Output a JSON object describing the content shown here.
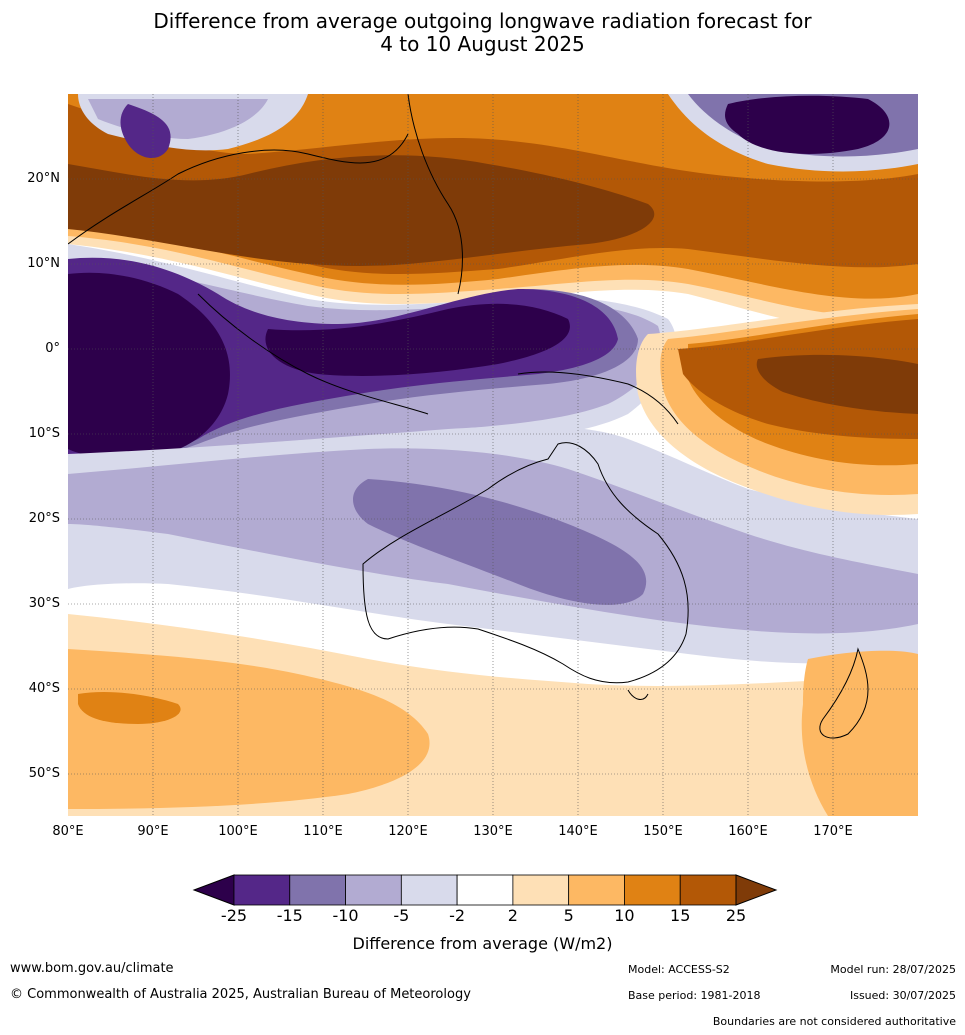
{
  "title_line1": "Difference from average outgoing longwave radiation forecast for",
  "title_line2": "4 to 10 August 2025",
  "lat_labels": [
    "20°N",
    "10°N",
    "0°",
    "10°S",
    "20°S",
    "30°S",
    "40°S",
    "50°S"
  ],
  "lon_labels": [
    "80°E",
    "90°E",
    "100°E",
    "110°E",
    "120°E",
    "130°E",
    "140°E",
    "150°E",
    "160°E",
    "170°E"
  ],
  "colorbar": {
    "ticks": [
      "-25",
      "-15",
      "-10",
      "-5",
      "-2",
      "2",
      "5",
      "10",
      "15",
      "25"
    ],
    "colors": [
      "#2d004b",
      "#542788",
      "#8073ac",
      "#b2abd2",
      "#d8daeb",
      "#ffffff",
      "#fee0b6",
      "#fdb863",
      "#e08214",
      "#b35806",
      "#7f3b08"
    ],
    "label": "Difference from average (W/m2)"
  },
  "footer": {
    "website": "www.bom.gov.au/climate",
    "copyright": "© Commonwealth of Australia 2025, Australian Bureau of Meteorology",
    "model": "Model: ACCESS-S2",
    "base_period": "Base period: 1981-2018",
    "model_run": "Model run: 28/07/2025",
    "issued": "Issued: 30/07/2025",
    "disclaimer": "Boundaries are not considered authoritative"
  }
}
